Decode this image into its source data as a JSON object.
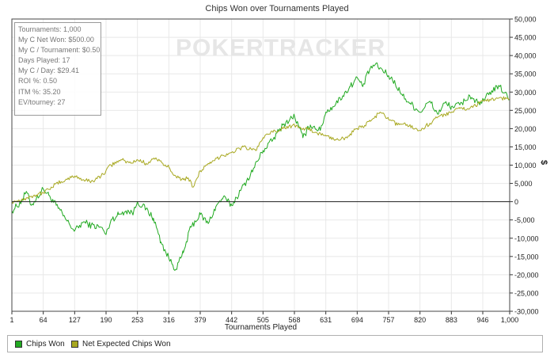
{
  "header": {
    "title": "Chips Won over Tournaments Played"
  },
  "watermark": {
    "text": "POKERTRACKER"
  },
  "stats": {
    "lines": [
      "Tournaments: 1,000",
      "My C Net Won: $500.00",
      "My C / Tournament: $0.50",
      "Days Played: 17",
      "My C / Day: $29.41",
      "ROI %: 0.50",
      "ITM %: 35.20",
      "EV/tourney: 27"
    ]
  },
  "legend": {
    "items": [
      {
        "label": "Chips Won",
        "color": "#22aa22"
      },
      {
        "label": "Net Expected Chips Won",
        "color": "#a8a820"
      }
    ]
  },
  "colors": {
    "chips_won": "#22aa22",
    "net_expected": "#a8a820",
    "axis": "#333333",
    "grid": "#e8e8e8"
  },
  "chart_data": {
    "type": "line",
    "title": "Chips Won over Tournaments Played",
    "xlabel": "Tournaments Played",
    "ylabel": "$",
    "xlim": [
      1,
      1000
    ],
    "ylim": [
      -30000,
      50000
    ],
    "x_ticks": [
      "1",
      "64",
      "127",
      "190",
      "253",
      "316",
      "379",
      "442",
      "505",
      "568",
      "631",
      "694",
      "757",
      "820",
      "883",
      "946",
      "1,000"
    ],
    "x_tick_values": [
      1,
      64,
      127,
      190,
      253,
      316,
      379,
      442,
      505,
      568,
      631,
      694,
      757,
      820,
      883,
      946,
      1000
    ],
    "y_ticks": [
      "50,000",
      "45,000",
      "40,000",
      "35,000",
      "30,000",
      "25,000",
      "20,000",
      "15,000",
      "10,000",
      "5,000",
      "0",
      "-5,000",
      "-10,000",
      "-15,000",
      "-20,000",
      "-25,000",
      "-30,000"
    ],
    "y_tick_values": [
      50000,
      45000,
      40000,
      35000,
      30000,
      25000,
      20000,
      15000,
      10000,
      5000,
      0,
      -5000,
      -10000,
      -15000,
      -20000,
      -25000,
      -30000
    ],
    "grid": true,
    "legend_position": "bottom",
    "series": [
      {
        "name": "Chips Won",
        "x": [
          1,
          20,
          30,
          40,
          64,
          75,
          90,
          110,
          127,
          145,
          160,
          180,
          190,
          200,
          215,
          230,
          245,
          253,
          270,
          285,
          300,
          316,
          330,
          345,
          360,
          379,
          395,
          410,
          425,
          442,
          460,
          480,
          505,
          525,
          545,
          568,
          585,
          600,
          620,
          631,
          645,
          665,
          680,
          694,
          705,
          720,
          730,
          745,
          757,
          770,
          785,
          800,
          820,
          840,
          855,
          870,
          883,
          900,
          920,
          940,
          950,
          960,
          980,
          1000
        ],
        "y": [
          -2500,
          0,
          2800,
          -1000,
          3500,
          1800,
          -1000,
          -5000,
          -8000,
          -5500,
          -6500,
          -7000,
          -9000,
          -5000,
          -3500,
          -2500,
          -3000,
          0,
          -2000,
          -4500,
          -11000,
          -15500,
          -18500,
          -14000,
          -7000,
          -3500,
          -6000,
          -1500,
          1200,
          -1000,
          3000,
          7500,
          14000,
          17000,
          21000,
          23500,
          17500,
          21000,
          19500,
          24500,
          26000,
          29000,
          31500,
          34000,
          31500,
          36500,
          37500,
          36000,
          34500,
          32500,
          29000,
          27000,
          24500,
          27500,
          24000,
          27000,
          26000,
          26500,
          29000,
          26500,
          28000,
          30000,
          31500,
          28000
        ]
      },
      {
        "name": "Net Expected Chips Won",
        "x": [
          1,
          20,
          40,
          64,
          80,
          100,
          127,
          145,
          160,
          180,
          200,
          220,
          240,
          253,
          270,
          290,
          305,
          316,
          330,
          345,
          355,
          365,
          379,
          400,
          420,
          442,
          465,
          490,
          505,
          525,
          545,
          568,
          590,
          610,
          631,
          650,
          670,
          694,
          705,
          720,
          740,
          757,
          775,
          790,
          810,
          820,
          840,
          860,
          883,
          900,
          920,
          940,
          960,
          980,
          1000
        ],
        "y": [
          0,
          500,
          1500,
          2500,
          4000,
          5500,
          7000,
          6000,
          5500,
          7000,
          10000,
          11500,
          10500,
          11500,
          10500,
          12000,
          10000,
          9500,
          7000,
          6000,
          6500,
          4000,
          8500,
          10500,
          12500,
          13500,
          15000,
          14000,
          17500,
          19000,
          20000,
          21000,
          20000,
          19000,
          18000,
          17000,
          17500,
          20000,
          20500,
          22000,
          24500,
          22500,
          21000,
          21500,
          20000,
          19500,
          21500,
          23500,
          24500,
          25500,
          25500,
          27000,
          28000,
          28500,
          28000
        ]
      }
    ]
  }
}
